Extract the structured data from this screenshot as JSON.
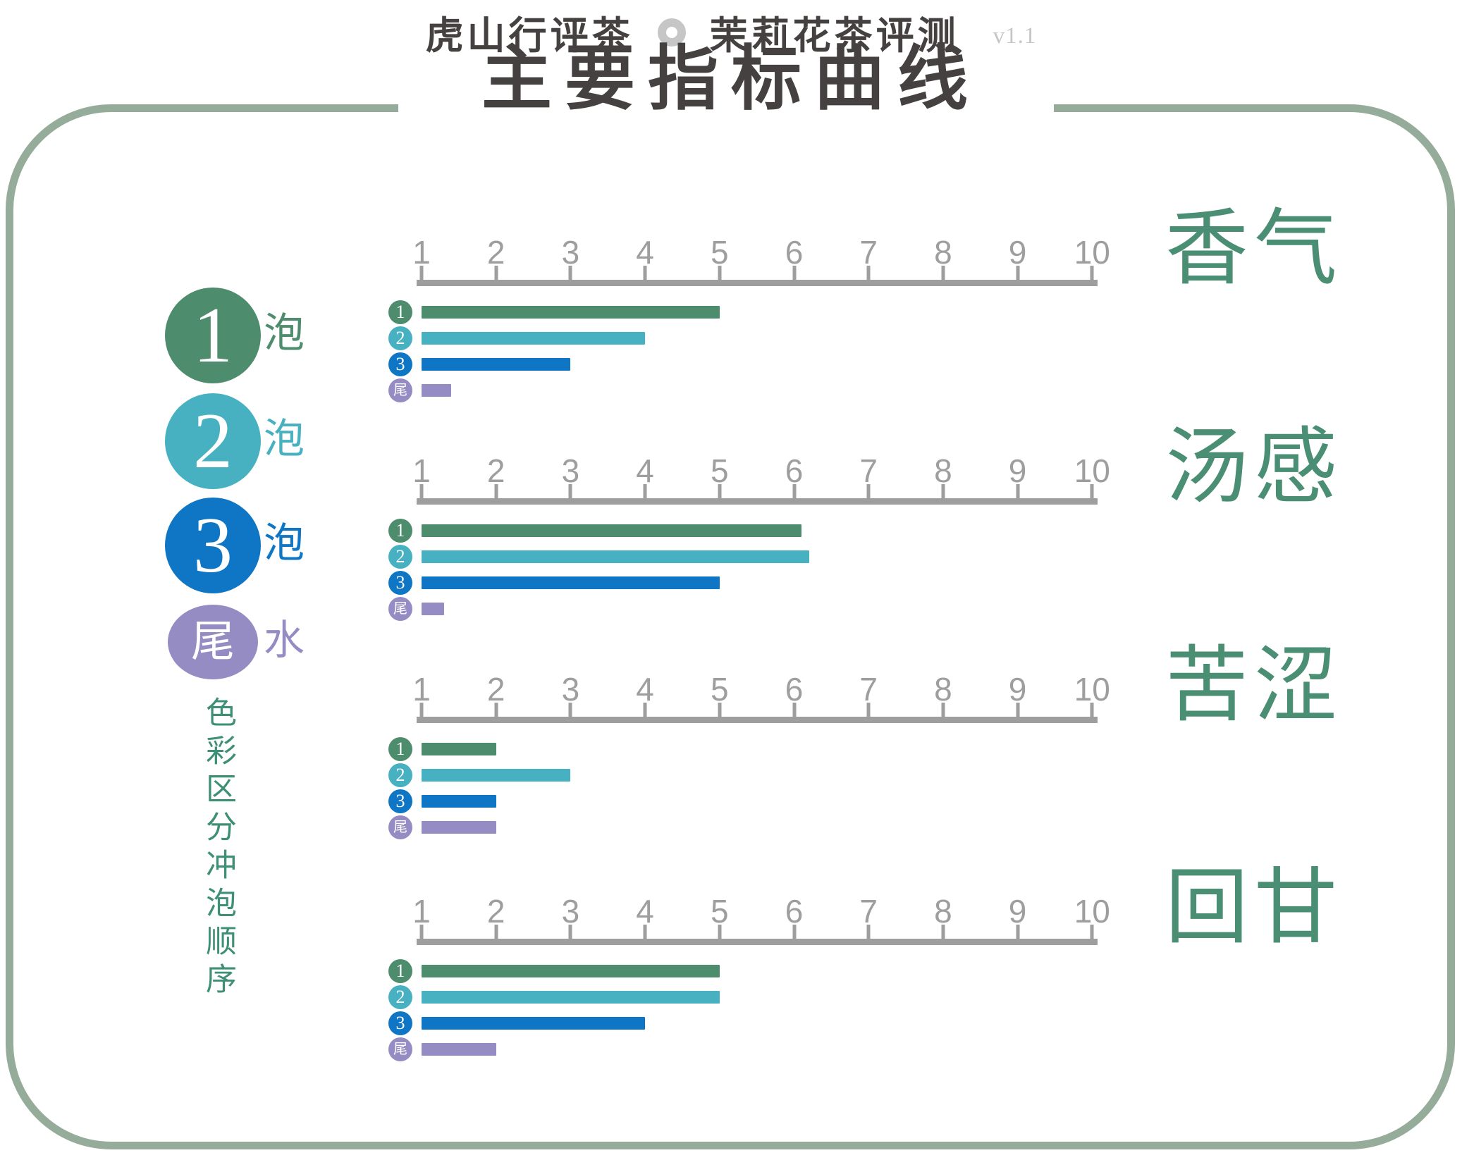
{
  "header": {
    "brand": "虎山行评茶",
    "subject": "茉莉花茶评测",
    "version": "v1.1",
    "title": "主要指标曲线"
  },
  "legend": {
    "note": "色彩区分冲泡顺序",
    "items": [
      {
        "badge": "1",
        "label": "泡",
        "color": "#4d8d6d"
      },
      {
        "badge": "2",
        "label": "泡",
        "color": "#47b1c1"
      },
      {
        "badge": "3",
        "label": "泡",
        "color": "#0e76c4"
      },
      {
        "badge": "尾",
        "label": "水",
        "color": "#968cc4"
      }
    ]
  },
  "colors": {
    "frame": "#96ac9a",
    "ink": "#454140",
    "axis": "#9e9e9e",
    "muted": "#c6c6c6",
    "metric_label": "#4a8e73",
    "note_text": "#3e8f76"
  },
  "chart_data": [
    {
      "type": "bar",
      "orientation": "horizontal",
      "title": "香气",
      "x_axis": {
        "min": 1,
        "max": 10,
        "ticks": [
          1,
          2,
          3,
          4,
          5,
          6,
          7,
          8,
          9,
          10
        ]
      },
      "categories": [
        "1泡",
        "2泡",
        "3泡",
        "尾水"
      ],
      "values": [
        5,
        4,
        3,
        1.4
      ],
      "grid": false
    },
    {
      "type": "bar",
      "orientation": "horizontal",
      "title": "汤感",
      "x_axis": {
        "min": 1,
        "max": 10,
        "ticks": [
          1,
          2,
          3,
          4,
          5,
          6,
          7,
          8,
          9,
          10
        ]
      },
      "categories": [
        "1泡",
        "2泡",
        "3泡",
        "尾水"
      ],
      "values": [
        6.1,
        6.2,
        5,
        1.3
      ],
      "grid": false
    },
    {
      "type": "bar",
      "orientation": "horizontal",
      "title": "苦涩",
      "x_axis": {
        "min": 1,
        "max": 10,
        "ticks": [
          1,
          2,
          3,
          4,
          5,
          6,
          7,
          8,
          9,
          10
        ]
      },
      "categories": [
        "1泡",
        "2泡",
        "3泡",
        "尾水"
      ],
      "values": [
        2,
        3,
        2,
        2
      ],
      "grid": false
    },
    {
      "type": "bar",
      "orientation": "horizontal",
      "title": "回甘",
      "x_axis": {
        "min": 1,
        "max": 10,
        "ticks": [
          1,
          2,
          3,
          4,
          5,
          6,
          7,
          8,
          9,
          10
        ]
      },
      "categories": [
        "1泡",
        "2泡",
        "3泡",
        "尾水"
      ],
      "values": [
        5,
        5,
        4,
        2
      ],
      "grid": false
    }
  ]
}
